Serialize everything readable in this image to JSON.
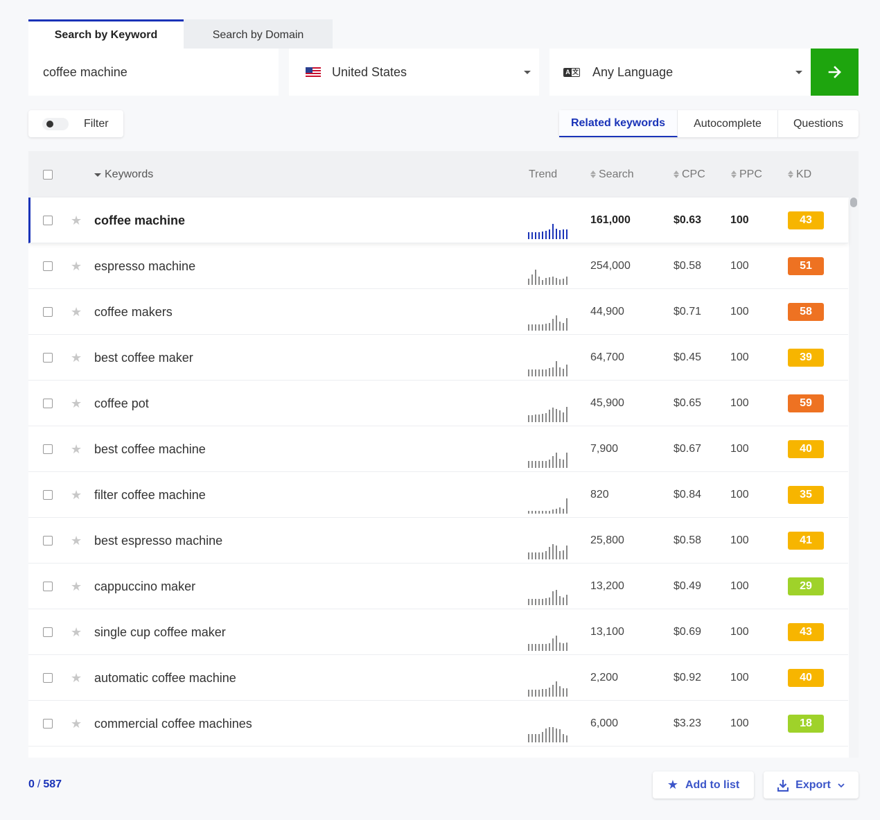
{
  "search_tabs": [
    {
      "label": "Search by Keyword",
      "active": true
    },
    {
      "label": "Search by Domain",
      "active": false
    }
  ],
  "search": {
    "keyword": "coffee machine",
    "country": "United States",
    "language": "Any Language",
    "language_icon_glyphs": [
      "A",
      "文"
    ],
    "go_icon": "arrow-right-icon",
    "go_color": "#1ea50e"
  },
  "filter": {
    "label": "Filter",
    "enabled": false
  },
  "mode_tabs": [
    {
      "label": "Related keywords",
      "active": true
    },
    {
      "label": "Autocomplete",
      "active": false
    },
    {
      "label": "Questions",
      "active": false
    }
  ],
  "table": {
    "columns": {
      "keywords": "Keywords",
      "trend": "Trend",
      "search": "Search",
      "cpc": "CPC",
      "ppc": "PPC",
      "kd": "KD"
    },
    "rows": [
      {
        "keyword": "coffee machine",
        "search": "161,000",
        "cpc": "$0.63",
        "ppc": "100",
        "kd": "43",
        "kd_color": "#f7b500",
        "selected": true,
        "trend": [
          0.45,
          0.45,
          0.45,
          0.45,
          0.5,
          0.55,
          0.65,
          1.0,
          0.7,
          0.6,
          0.65,
          0.65
        ]
      },
      {
        "keyword": "espresso machine",
        "search": "254,000",
        "cpc": "$0.58",
        "ppc": "100",
        "kd": "51",
        "kd_color": "#ee7222",
        "selected": false,
        "trend": [
          0.4,
          0.7,
          1.0,
          0.55,
          0.3,
          0.45,
          0.5,
          0.55,
          0.45,
          0.35,
          0.4,
          0.55
        ]
      },
      {
        "keyword": "coffee makers",
        "search": "44,900",
        "cpc": "$0.71",
        "ppc": "100",
        "kd": "58",
        "kd_color": "#ee7222",
        "selected": false,
        "trend": [
          0.4,
          0.4,
          0.4,
          0.4,
          0.4,
          0.45,
          0.5,
          0.75,
          1.0,
          0.6,
          0.5,
          0.8
        ]
      },
      {
        "keyword": "best coffee maker",
        "search": "64,700",
        "cpc": "$0.45",
        "ppc": "100",
        "kd": "39",
        "kd_color": "#f7b500",
        "selected": false,
        "trend": [
          0.45,
          0.45,
          0.45,
          0.45,
          0.45,
          0.45,
          0.55,
          0.6,
          1.0,
          0.6,
          0.5,
          0.75
        ]
      },
      {
        "keyword": "coffee pot",
        "search": "45,900",
        "cpc": "$0.65",
        "ppc": "100",
        "kd": "59",
        "kd_color": "#ee7222",
        "selected": false,
        "trend": [
          0.45,
          0.45,
          0.5,
          0.5,
          0.55,
          0.6,
          0.8,
          0.95,
          0.85,
          0.75,
          0.65,
          1.0
        ]
      },
      {
        "keyword": "best coffee machine",
        "search": "7,900",
        "cpc": "$0.67",
        "ppc": "100",
        "kd": "40",
        "kd_color": "#f7b500",
        "selected": false,
        "trend": [
          0.45,
          0.45,
          0.45,
          0.45,
          0.45,
          0.45,
          0.55,
          0.75,
          1.0,
          0.6,
          0.55,
          1.0
        ]
      },
      {
        "keyword": "filter coffee machine",
        "search": "820",
        "cpc": "$0.84",
        "ppc": "100",
        "kd": "35",
        "kd_color": "#f7b500",
        "selected": false,
        "trend": [
          0.2,
          0.2,
          0.2,
          0.2,
          0.2,
          0.2,
          0.2,
          0.25,
          0.3,
          0.4,
          0.3,
          1.0
        ]
      },
      {
        "keyword": "best espresso machine",
        "search": "25,800",
        "cpc": "$0.58",
        "ppc": "100",
        "kd": "41",
        "kd_color": "#f7b500",
        "selected": false,
        "trend": [
          0.45,
          0.45,
          0.45,
          0.45,
          0.45,
          0.55,
          0.8,
          1.0,
          0.9,
          0.55,
          0.6,
          0.9
        ]
      },
      {
        "keyword": "cappuccino maker",
        "search": "13,200",
        "cpc": "$0.49",
        "ppc": "100",
        "kd": "29",
        "kd_color": "#9fd22a",
        "selected": false,
        "trend": [
          0.4,
          0.4,
          0.4,
          0.4,
          0.4,
          0.45,
          0.5,
          0.9,
          1.0,
          0.6,
          0.5,
          0.7
        ]
      },
      {
        "keyword": "single cup coffee maker",
        "search": "13,100",
        "cpc": "$0.69",
        "ppc": "100",
        "kd": "43",
        "kd_color": "#f7b500",
        "selected": false,
        "trend": [
          0.45,
          0.45,
          0.45,
          0.45,
          0.45,
          0.45,
          0.5,
          0.8,
          1.0,
          0.55,
          0.5,
          0.55
        ]
      },
      {
        "keyword": "automatic coffee machine",
        "search": "2,200",
        "cpc": "$0.92",
        "ppc": "100",
        "kd": "40",
        "kd_color": "#f7b500",
        "selected": false,
        "trend": [
          0.45,
          0.45,
          0.45,
          0.45,
          0.5,
          0.5,
          0.6,
          0.75,
          1.0,
          0.7,
          0.55,
          0.55
        ]
      },
      {
        "keyword": "commercial coffee machines",
        "search": "6,000",
        "cpc": "$3.23",
        "ppc": "100",
        "kd": "18",
        "kd_color": "#9fd22a",
        "selected": false,
        "trend": [
          0.55,
          0.55,
          0.55,
          0.55,
          0.7,
          0.9,
          1.0,
          1.0,
          0.9,
          0.85,
          0.55,
          0.45
        ]
      }
    ]
  },
  "footer": {
    "selected_count": "0",
    "total_count": "587",
    "add_to_list": "Add to list",
    "export": "Export"
  }
}
